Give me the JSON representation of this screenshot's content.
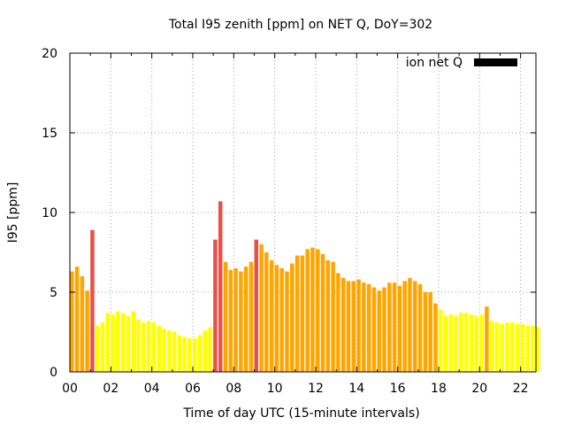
{
  "chart_data": {
    "type": "bar",
    "title": "Total I95 zenith [ppm] on NET Q, DoY=302",
    "xlabel": "Time of day UTC (15-minute intervals)",
    "ylabel": "I95 [ppm]",
    "legend": {
      "label": "ion net Q",
      "color": "#000000",
      "placement": "top-right"
    },
    "xlim": [
      0,
      22.75
    ],
    "ylim": [
      0,
      20
    ],
    "grid": true,
    "x_interval_hours": 0.25,
    "x_ticks": [
      0,
      2,
      4,
      6,
      8,
      10,
      12,
      14,
      16,
      18,
      20,
      22
    ],
    "x_tick_labels": [
      "00",
      "02",
      "04",
      "06",
      "08",
      "10",
      "12",
      "14",
      "16",
      "18",
      "20",
      "22"
    ],
    "y_ticks": [
      0,
      5,
      10,
      15,
      20
    ],
    "y_tick_labels": [
      "0",
      "5",
      "10",
      "15",
      "20"
    ],
    "level_colors": {
      "low": "#ffff00",
      "medium": "#ffa500",
      "high": "#e8504a"
    },
    "series": [
      {
        "values": [
          6.3,
          6.6,
          6.0,
          5.1,
          8.9,
          2.9,
          3.1,
          3.7,
          3.6,
          3.8,
          3.7,
          3.5,
          3.8,
          3.3,
          3.1,
          3.2,
          3.1,
          2.9,
          2.7,
          2.6,
          2.5,
          2.3,
          2.2,
          2.1,
          2.1,
          2.3,
          2.6,
          2.8,
          8.3,
          10.7,
          6.9,
          6.4,
          6.5,
          6.3,
          6.6,
          6.9,
          8.3,
          8.0,
          7.5,
          7.0,
          6.7,
          6.5,
          6.3,
          6.8,
          7.3,
          7.3,
          7.7,
          7.8,
          7.7,
          7.4,
          7.0,
          6.9,
          6.2,
          5.9,
          5.7,
          5.7,
          5.8,
          5.6,
          5.5,
          5.3,
          5.1,
          5.3,
          5.6,
          5.6,
          5.4,
          5.7,
          5.9,
          5.7,
          5.5,
          5.0,
          5.0,
          4.3,
          3.9,
          3.5,
          3.6,
          3.5,
          3.7,
          3.7,
          3.6,
          3.5,
          3.6,
          4.1,
          3.2,
          3.1,
          3.0,
          3.1,
          3.1,
          3.0,
          3.0,
          2.9,
          2.9,
          2.8
        ],
        "levels": [
          "M",
          "M",
          "M",
          "M",
          "H",
          "L",
          "L",
          "L",
          "L",
          "L",
          "L",
          "L",
          "L",
          "L",
          "L",
          "L",
          "L",
          "L",
          "L",
          "L",
          "L",
          "L",
          "L",
          "L",
          "L",
          "L",
          "L",
          "L",
          "H",
          "H",
          "M",
          "M",
          "M",
          "M",
          "M",
          "M",
          "H",
          "M",
          "M",
          "M",
          "M",
          "M",
          "M",
          "M",
          "M",
          "M",
          "M",
          "M",
          "M",
          "M",
          "M",
          "M",
          "M",
          "M",
          "M",
          "M",
          "M",
          "M",
          "M",
          "M",
          "M",
          "M",
          "M",
          "M",
          "M",
          "M",
          "M",
          "M",
          "M",
          "M",
          "M",
          "M",
          "L",
          "L",
          "L",
          "L",
          "L",
          "L",
          "L",
          "L",
          "L",
          "M",
          "L",
          "L",
          "L",
          "L",
          "L",
          "L",
          "L",
          "L",
          "L",
          "L"
        ]
      }
    ]
  }
}
